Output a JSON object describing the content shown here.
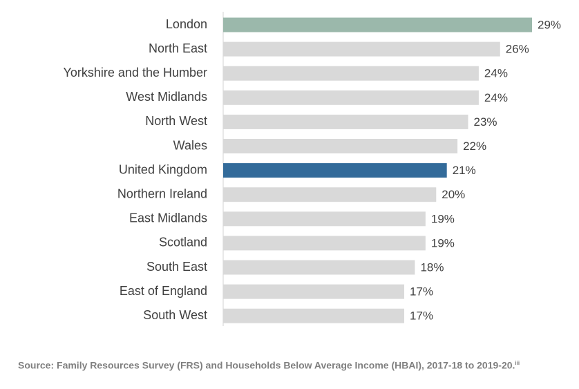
{
  "chart_data": {
    "type": "bar",
    "orientation": "horizontal",
    "categories": [
      "London",
      "North East",
      "Yorkshire and the Humber",
      "West Midlands",
      "North West",
      "Wales",
      "United Kingdom",
      "Northern Ireland",
      "East Midlands",
      "Scotland",
      "South East",
      "East of England",
      "South West"
    ],
    "values": [
      29,
      26,
      24,
      24,
      23,
      22,
      21,
      20,
      19,
      19,
      18,
      17,
      17
    ],
    "value_labels": [
      "29%",
      "26%",
      "24%",
      "24%",
      "23%",
      "22%",
      "21%",
      "20%",
      "19%",
      "19%",
      "18%",
      "17%",
      "17%"
    ],
    "colors": [
      "#9bb8ab",
      "#d9d9d9",
      "#d9d9d9",
      "#d9d9d9",
      "#d9d9d9",
      "#d9d9d9",
      "#336b9a",
      "#d9d9d9",
      "#d9d9d9",
      "#d9d9d9",
      "#d9d9d9",
      "#d9d9d9",
      "#d9d9d9"
    ],
    "source": "Source: Family Resources Survey (FRS) and Households Below Average Income (HBAI), 2017-18 to 2019-20.",
    "source_note": "iii"
  }
}
